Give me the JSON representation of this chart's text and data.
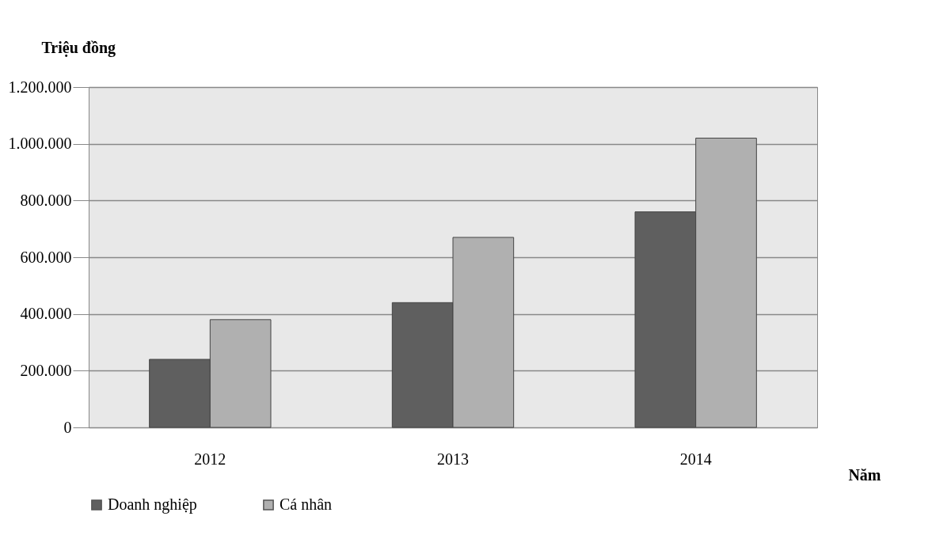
{
  "chart_data": {
    "type": "bar",
    "ylabel": "Triệu đồng",
    "xlabel": "Năm",
    "categories": [
      "2012",
      "2013",
      "2014"
    ],
    "series": [
      {
        "name": "Doanh nghiệp",
        "color": "#5f5f5f",
        "values": [
          240000,
          440000,
          760000
        ]
      },
      {
        "name": "Cá nhân",
        "color": "#b0b0b0",
        "values": [
          380000,
          670000,
          1020000
        ]
      }
    ],
    "ylim": [
      0,
      1200000
    ],
    "yticks": [
      {
        "value": 0,
        "label": "0"
      },
      {
        "value": 200000,
        "label": "200.000"
      },
      {
        "value": 400000,
        "label": "400.000"
      },
      {
        "value": 600000,
        "label": "600.000"
      },
      {
        "value": 800000,
        "label": "800.000"
      },
      {
        "value": 1000000,
        "label": "1.000.000"
      },
      {
        "value": 1200000,
        "label": "1.200.000"
      }
    ],
    "grid": "y",
    "legend": "bottom"
  }
}
